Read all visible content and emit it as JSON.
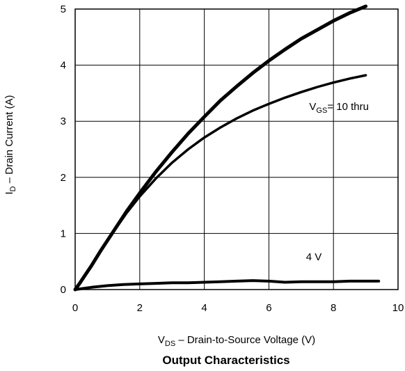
{
  "chart_data": {
    "type": "line",
    "title": "Output Characteristics",
    "xlabel": {
      "main": "V",
      "sub": "DS",
      "rest": " – Drain-to-Source Voltage (V)"
    },
    "ylabel": {
      "main": "I",
      "sub": "D",
      "rest": " – Drain Current (A)"
    },
    "xlim": [
      0,
      10
    ],
    "ylim": [
      0,
      5
    ],
    "xticks": [
      "0",
      "2",
      "4",
      "6",
      "8",
      "10"
    ],
    "yticks": [
      "0",
      "1",
      "2",
      "3",
      "4",
      "5"
    ],
    "grid": true,
    "annotations": [
      {
        "id": "vgs",
        "main": "V",
        "sub": "GS",
        "rest": "= 10 thru",
        "x": 7.25,
        "y": 3.2
      },
      {
        "id": "four",
        "text": "4 V",
        "x": 7.15,
        "y": 0.52
      }
    ],
    "series": [
      {
        "width": 5,
        "x": [
          0,
          0.15,
          0.3,
          0.5,
          0.8,
          1.2,
          1.6,
          2.0,
          2.5,
          3.0,
          3.5,
          4.0,
          4.5,
          5.0,
          5.5,
          6.0,
          6.5,
          7.0,
          7.5,
          8.0,
          8.5,
          9.0
        ],
        "y": [
          0,
          0.12,
          0.25,
          0.42,
          0.7,
          1.05,
          1.4,
          1.72,
          2.1,
          2.45,
          2.78,
          3.08,
          3.37,
          3.62,
          3.86,
          4.08,
          4.28,
          4.47,
          4.63,
          4.79,
          4.93,
          5.05
        ]
      },
      {
        "width": 3.5,
        "x": [
          0,
          0.15,
          0.3,
          0.5,
          0.8,
          1.2,
          1.6,
          2.0,
          2.5,
          3.0,
          3.5,
          4.0,
          4.5,
          5.0,
          5.5,
          6.0,
          6.5,
          7.0,
          7.5,
          8.0,
          8.5,
          9.0
        ],
        "y": [
          0,
          0.12,
          0.25,
          0.42,
          0.7,
          1.04,
          1.37,
          1.66,
          1.98,
          2.26,
          2.5,
          2.71,
          2.89,
          3.05,
          3.19,
          3.31,
          3.42,
          3.52,
          3.61,
          3.69,
          3.76,
          3.82
        ]
      },
      {
        "width": 4,
        "x": [
          0,
          0.5,
          1.0,
          1.5,
          2.0,
          2.5,
          3.0,
          3.5,
          4.0,
          4.5,
          5.0,
          5.5,
          6.0,
          6.5,
          7.0,
          7.5,
          8.0,
          8.5,
          9.0,
          9.4
        ],
        "y": [
          0,
          0.04,
          0.07,
          0.09,
          0.1,
          0.11,
          0.12,
          0.12,
          0.13,
          0.14,
          0.15,
          0.16,
          0.15,
          0.13,
          0.14,
          0.14,
          0.14,
          0.15,
          0.15,
          0.15
        ]
      }
    ]
  }
}
